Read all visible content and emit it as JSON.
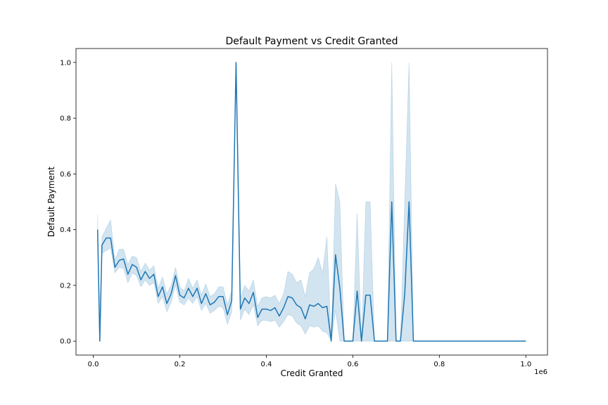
{
  "chart_data": {
    "type": "line",
    "title": "Default Payment vs Credit Granted",
    "xlabel": "Credit Granted",
    "ylabel": "Default Payment",
    "x_offset_label": "1e6",
    "xlim": [
      -0.04,
      1.05
    ],
    "ylim": [
      -0.05,
      1.05
    ],
    "xticks": [
      0.0,
      0.2,
      0.4,
      0.6,
      0.8,
      1.0
    ],
    "xtick_labels": [
      "0.0",
      "0.2",
      "0.4",
      "0.6",
      "0.8",
      "1.0"
    ],
    "yticks": [
      0.0,
      0.2,
      0.4,
      0.6,
      0.8,
      1.0
    ],
    "ytick_labels": [
      "0.0",
      "0.2",
      "0.4",
      "0.6",
      "0.8",
      "1.0"
    ],
    "grid": false,
    "line_color": "#1f77b4",
    "band_color": "#1f77b4",
    "series": [
      {
        "x": [
          0.01,
          0.015,
          0.02,
          0.03,
          0.04,
          0.05,
          0.06,
          0.07,
          0.08,
          0.09,
          0.1,
          0.11,
          0.12,
          0.13,
          0.14,
          0.15,
          0.16,
          0.17,
          0.18,
          0.19,
          0.2,
          0.21,
          0.22,
          0.23,
          0.24,
          0.25,
          0.26,
          0.27,
          0.28,
          0.29,
          0.3,
          0.31,
          0.32,
          0.33,
          0.34,
          0.35,
          0.36,
          0.37,
          0.38,
          0.39,
          0.4,
          0.41,
          0.42,
          0.43,
          0.44,
          0.45,
          0.46,
          0.47,
          0.48,
          0.49,
          0.5,
          0.51,
          0.52,
          0.53,
          0.54,
          0.55,
          0.56,
          0.57,
          0.58,
          0.59,
          0.6,
          0.61,
          0.62,
          0.63,
          0.64,
          0.65,
          0.66,
          0.67,
          0.68,
          0.69,
          0.7,
          0.71,
          0.72,
          0.73,
          0.74,
          0.75,
          0.8,
          0.9,
          1.0
        ],
        "y": [
          0.4,
          0.0,
          0.345,
          0.37,
          0.37,
          0.265,
          0.29,
          0.295,
          0.24,
          0.275,
          0.265,
          0.22,
          0.25,
          0.225,
          0.24,
          0.16,
          0.195,
          0.135,
          0.17,
          0.235,
          0.165,
          0.155,
          0.19,
          0.16,
          0.19,
          0.135,
          0.17,
          0.13,
          0.14,
          0.16,
          0.16,
          0.095,
          0.145,
          1.0,
          0.115,
          0.155,
          0.135,
          0.175,
          0.085,
          0.115,
          0.115,
          0.11,
          0.12,
          0.09,
          0.12,
          0.16,
          0.155,
          0.13,
          0.12,
          0.08,
          0.13,
          0.125,
          0.135,
          0.12,
          0.125,
          0.0,
          0.31,
          0.19,
          0.0,
          0.0,
          0.0,
          0.18,
          0.0,
          0.165,
          0.165,
          0.0,
          0.0,
          0.0,
          0.0,
          0.5,
          0.0,
          0.0,
          0.17,
          0.5,
          0.0,
          0.0,
          0.0,
          0.0,
          0.0
        ],
        "ci_low": [
          0.35,
          0.0,
          0.315,
          0.325,
          0.335,
          0.245,
          0.265,
          0.26,
          0.21,
          0.245,
          0.235,
          0.195,
          0.22,
          0.2,
          0.21,
          0.135,
          0.16,
          0.105,
          0.14,
          0.2,
          0.14,
          0.13,
          0.155,
          0.135,
          0.16,
          0.11,
          0.135,
          0.1,
          0.11,
          0.125,
          0.12,
          0.06,
          0.105,
          1.0,
          0.075,
          0.115,
          0.095,
          0.13,
          0.055,
          0.075,
          0.075,
          0.07,
          0.075,
          0.05,
          0.07,
          0.095,
          0.09,
          0.065,
          0.055,
          0.025,
          0.055,
          0.05,
          0.055,
          0.035,
          0.03,
          0.0,
          0.11,
          0.0,
          0.0,
          0.0,
          0.0,
          0.0,
          0.0,
          0.0,
          0.0,
          0.0,
          0.0,
          0.0,
          0.0,
          0.0,
          0.0,
          0.0,
          0.0,
          0.0,
          0.0,
          0.0,
          0.0,
          0.0,
          0.0
        ],
        "ci_high": [
          0.455,
          0.0,
          0.375,
          0.405,
          0.435,
          0.29,
          0.33,
          0.33,
          0.275,
          0.305,
          0.3,
          0.25,
          0.28,
          0.255,
          0.27,
          0.19,
          0.23,
          0.17,
          0.2,
          0.265,
          0.195,
          0.18,
          0.225,
          0.19,
          0.22,
          0.165,
          0.205,
          0.16,
          0.17,
          0.195,
          0.195,
          0.13,
          0.18,
          1.0,
          0.155,
          0.2,
          0.18,
          0.22,
          0.125,
          0.155,
          0.16,
          0.155,
          0.165,
          0.135,
          0.17,
          0.25,
          0.24,
          0.21,
          0.22,
          0.16,
          0.245,
          0.26,
          0.3,
          0.245,
          0.375,
          0.0,
          0.565,
          0.5,
          0.0,
          0.0,
          0.0,
          0.46,
          0.0,
          0.5,
          0.5,
          0.0,
          0.0,
          0.0,
          0.0,
          1.0,
          0.0,
          0.0,
          0.5,
          1.0,
          0.0,
          0.0,
          0.0,
          0.0,
          0.0
        ]
      }
    ]
  }
}
